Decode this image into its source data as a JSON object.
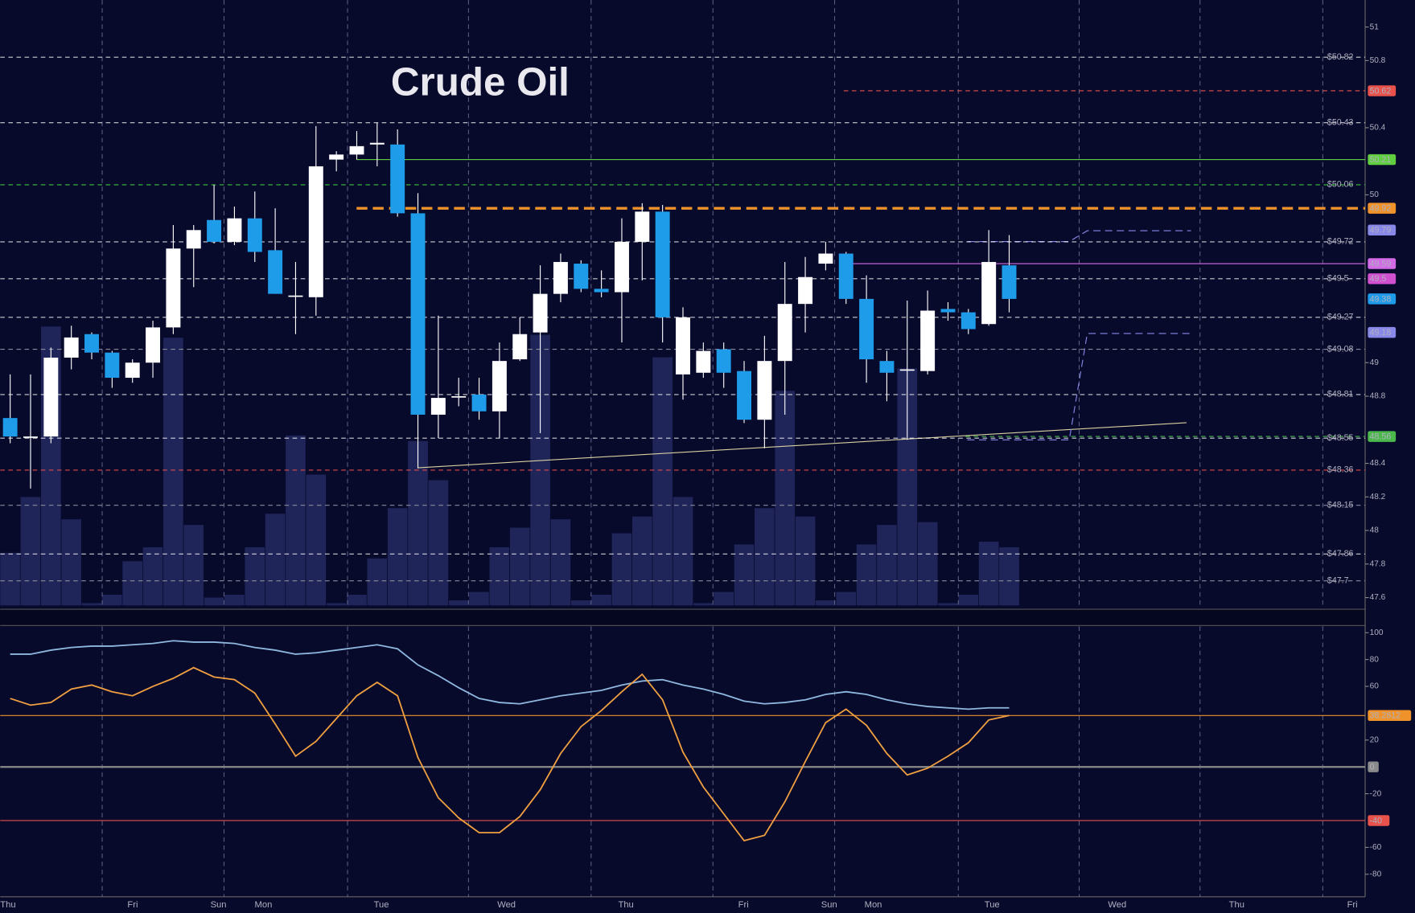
{
  "chart_data": {
    "type": "candlestick",
    "title": "Crude Oil",
    "x_labels": [
      "Thu",
      "Fri",
      "Sun",
      "Mon",
      "Tue",
      "Wed",
      "Thu",
      "Fri",
      "Sun",
      "Mon",
      "Tue",
      "Wed",
      "Thu",
      "Fri"
    ],
    "open": [
      48.67,
      48.56,
      48.56,
      49.03,
      49.17,
      49.06,
      48.91,
      49.0,
      49.21,
      49.68,
      49.85,
      49.72,
      49.86,
      49.67,
      49.4,
      49.39,
      50.21,
      50.24,
      50.3,
      50.3,
      49.89,
      48.69,
      48.8,
      48.81,
      48.71,
      49.02,
      49.18,
      49.41,
      49.59,
      49.44,
      49.42,
      49.72,
      49.9,
      48.93,
      48.94,
      49.08,
      48.95,
      48.66,
      49.01,
      49.35,
      49.59,
      49.65,
      49.38,
      49.01,
      48.96,
      48.95,
      49.32,
      49.3,
      49.23,
      49.58
    ],
    "high": [
      48.93,
      48.93,
      49.09,
      49.22,
      49.18,
      49.07,
      49.02,
      49.25,
      49.82,
      49.82,
      50.06,
      49.93,
      50.02,
      49.92,
      49.6,
      50.41,
      50.26,
      50.38,
      50.43,
      50.39,
      50.01,
      49.28,
      48.91,
      48.91,
      49.12,
      49.27,
      49.58,
      49.65,
      49.61,
      49.55,
      49.86,
      49.95,
      49.94,
      49.33,
      49.12,
      49.12,
      49.01,
      49.16,
      49.6,
      49.63,
      49.72,
      49.66,
      49.52,
      49.07,
      49.37,
      49.43,
      49.36,
      49.32,
      49.79,
      49.76
    ],
    "low": [
      48.52,
      48.25,
      48.52,
      48.96,
      49.02,
      48.85,
      48.88,
      48.91,
      49.17,
      49.45,
      49.71,
      49.7,
      49.6,
      49.41,
      49.17,
      49.28,
      50.14,
      50.21,
      50.17,
      49.87,
      48.37,
      48.55,
      48.74,
      48.66,
      48.55,
      49.01,
      48.58,
      49.36,
      49.42,
      49.39,
      49.12,
      49.49,
      49.12,
      48.78,
      48.91,
      48.85,
      48.64,
      48.49,
      48.69,
      49.18,
      49.55,
      49.35,
      48.88,
      48.77,
      48.54,
      48.93,
      49.25,
      49.17,
      49.22,
      49.3
    ],
    "close": [
      48.56,
      48.56,
      49.03,
      49.15,
      49.06,
      48.91,
      49.0,
      49.21,
      49.68,
      49.79,
      49.72,
      49.86,
      49.66,
      49.41,
      49.4,
      50.17,
      50.24,
      50.29,
      50.31,
      49.89,
      48.69,
      48.79,
      48.8,
      48.71,
      49.01,
      49.17,
      49.41,
      49.6,
      49.44,
      49.42,
      49.72,
      49.9,
      49.27,
      49.27,
      49.07,
      48.94,
      48.66,
      49.01,
      49.35,
      49.51,
      49.65,
      49.38,
      49.02,
      48.94,
      48.96,
      49.31,
      49.3,
      49.2,
      49.6,
      49.38
    ],
    "up_color": "#ffffff",
    "down_color": "#1e9be9",
    "volume": [
      19,
      39,
      100,
      31,
      1,
      4,
      16,
      21,
      96,
      29,
      3,
      4,
      21,
      33,
      61,
      47,
      1,
      4,
      17,
      35,
      59,
      45,
      2,
      5,
      21,
      28,
      97,
      31,
      2,
      4,
      26,
      32,
      89,
      39,
      1,
      5,
      22,
      35,
      77,
      32,
      2,
      5,
      22,
      29,
      85,
      30,
      1,
      4,
      23,
      21
    ],
    "volume_lim": [
      0,
      100
    ],
    "volume_color": "#1f2459",
    "ylim": [
      47.552,
      51.161
    ],
    "yticks": [
      51,
      50.8,
      50.4,
      50,
      49,
      48.8,
      48.4,
      48.2,
      48,
      47.8,
      47.6
    ],
    "levels": [
      {
        "value": 50.82,
        "label": "$50.82",
        "color": "#ffffff",
        "line": "dashed"
      },
      {
        "value": 50.43,
        "label": "$50.43",
        "color": "#ffffff",
        "line": "dashed"
      },
      {
        "value": 50.06,
        "label": "$50.06",
        "color": "#3ac23a",
        "line": "dashed"
      },
      {
        "value": 49.72,
        "label": "$49.72",
        "color": "#ffffff",
        "line": "dashed"
      },
      {
        "value": 49.5,
        "label": "$49.5",
        "color": "#ffffff",
        "line": "dashed"
      },
      {
        "value": 49.27,
        "label": "$49.27",
        "color": "#ffffff",
        "line": "dashed"
      },
      {
        "value": 49.08,
        "label": "$49.08",
        "color": "#8a8a9a",
        "line": "dashed"
      },
      {
        "value": 48.81,
        "label": "$48.81",
        "color": "#ffffff",
        "line": "dashed"
      },
      {
        "value": 48.55,
        "label": "$48.55",
        "color": "#ffffff",
        "line": "dashed"
      },
      {
        "value": 48.36,
        "label": "$48.36",
        "color": "#e04a4a",
        "line": "dashed"
      },
      {
        "value": 48.15,
        "label": "$48.15",
        "color": "#8a8a9a",
        "line": "dashed"
      },
      {
        "value": 47.86,
        "label": "$47.86",
        "color": "#ffffff",
        "line": "dashed"
      },
      {
        "value": 47.7,
        "label": "$47.7",
        "color": "#8a8a9a",
        "line": "dashed"
      },
      {
        "value": 50.62,
        "color": "#e9524a",
        "line": "dashed"
      },
      {
        "value": 50.21,
        "color": "#5fcf3f",
        "line": "solid"
      },
      {
        "value": 49.92,
        "color": "#f0922a",
        "line": "dashed"
      },
      {
        "value": 49.79,
        "color": "#8888e8",
        "line": "none"
      },
      {
        "value": 49.59,
        "color": "#d36be6",
        "line": "solid"
      },
      {
        "value": 49.5,
        "color": "#d050d0",
        "line": "none"
      },
      {
        "value": 49.38,
        "color": "#1e9be9",
        "line": "none"
      },
      {
        "value": 49.18,
        "color": "#8888e8",
        "line": "none"
      },
      {
        "value": 48.56,
        "color": "#4bb84b",
        "line": "dashed"
      }
    ],
    "oscillator": {
      "ylim": [
        -96.8,
        104.7
      ],
      "yticks": [
        100,
        80,
        60,
        20,
        -20,
        -60,
        -80
      ],
      "series": [
        {
          "color": "#8fb8e0",
          "values": [
            84,
            84,
            87,
            89,
            90,
            90,
            91,
            92,
            94,
            93,
            93,
            92,
            89,
            87,
            84,
            85,
            87,
            89,
            91,
            88,
            76,
            68,
            59,
            51,
            48,
            47,
            50,
            53,
            55,
            57,
            61,
            64,
            65,
            61,
            58,
            54,
            49,
            47,
            48,
            50,
            54,
            56,
            54,
            50,
            47,
            45,
            44,
            43,
            44,
            44
          ]
        },
        {
          "color": "#f0a040",
          "values": [
            51,
            46,
            48,
            58,
            61,
            56,
            53,
            60,
            66,
            74,
            67,
            65,
            55,
            32,
            8,
            19,
            36,
            53,
            63,
            53,
            7,
            -23,
            -38,
            -49,
            -49,
            -37,
            -17,
            10,
            30,
            42,
            56,
            69,
            50,
            11,
            -15,
            -35,
            -55,
            -51,
            -26,
            4,
            33,
            43,
            31,
            10,
            -6,
            -1,
            8,
            18,
            35,
            38.2812
          ]
        }
      ],
      "levels": [
        {
          "value": 38.2812,
          "color": "#f0922a"
        },
        {
          "value": 0,
          "color": "#8a8a8a"
        },
        {
          "value": -40,
          "color": "#e9524a"
        }
      ]
    }
  }
}
